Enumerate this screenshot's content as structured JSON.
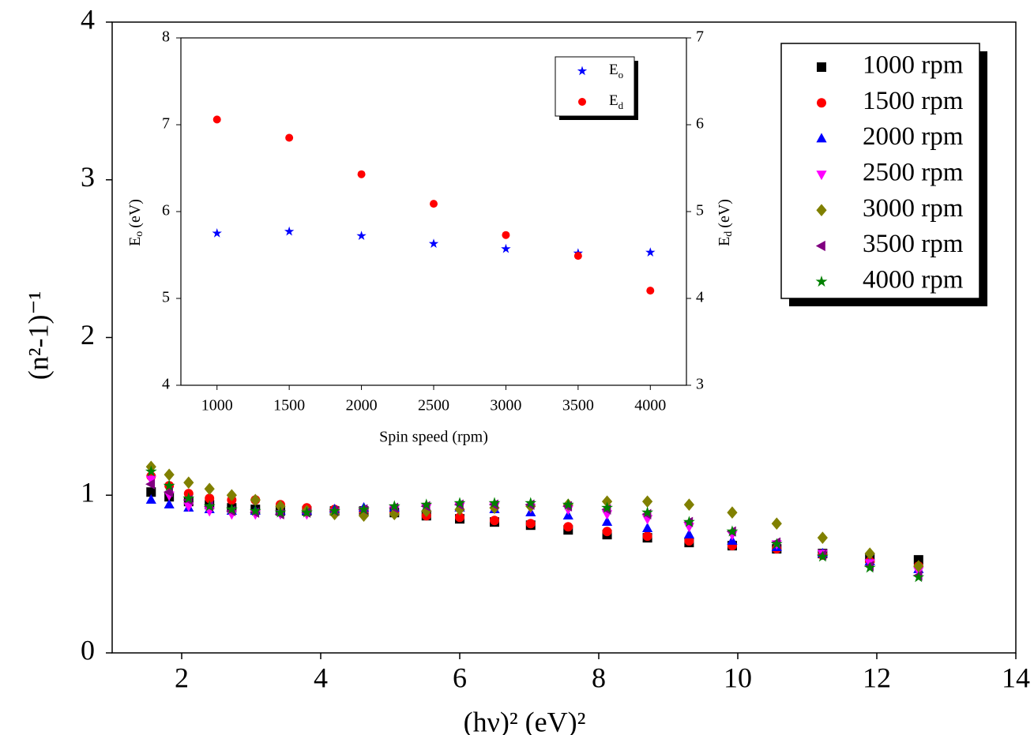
{
  "chart_data": [
    {
      "type": "scatter",
      "xlabel": "(hν)² (eV)²",
      "ylabel": "(n²-1)⁻¹",
      "xlim": [
        1,
        14
      ],
      "ylim": [
        0,
        4
      ],
      "xticks": [
        2,
        4,
        6,
        8,
        10,
        12,
        14
      ],
      "yticks": [
        0,
        1,
        2,
        3,
        4
      ],
      "legend": "upper right",
      "x": [
        1.56,
        1.82,
        2.1,
        2.4,
        2.72,
        3.06,
        3.42,
        3.8,
        4.2,
        4.62,
        5.06,
        5.52,
        6.0,
        6.5,
        7.02,
        7.56,
        8.12,
        8.7,
        9.3,
        9.92,
        10.56,
        11.22,
        11.9,
        12.6
      ],
      "series": [
        {
          "name": "1000 rpm",
          "color": "#000000",
          "marker": "square",
          "values": [
            1.02,
            0.99,
            0.96,
            0.94,
            0.92,
            0.91,
            0.9,
            0.9,
            0.9,
            0.9,
            0.89,
            0.87,
            0.85,
            0.83,
            0.81,
            0.78,
            0.75,
            0.73,
            0.7,
            0.68,
            0.66,
            0.63,
            0.6,
            0.59
          ]
        },
        {
          "name": "1500 rpm",
          "color": "#ff0000",
          "marker": "circle",
          "values": [
            1.12,
            1.06,
            1.01,
            0.98,
            0.97,
            0.97,
            0.94,
            0.92,
            0.91,
            0.9,
            0.89,
            0.87,
            0.86,
            0.84,
            0.82,
            0.8,
            0.77,
            0.74,
            0.71,
            0.68,
            0.66,
            0.62,
            0.58,
            0.55
          ]
        },
        {
          "name": "2000 rpm",
          "color": "#0000ff",
          "marker": "triangle-up",
          "values": [
            0.97,
            0.94,
            0.92,
            0.91,
            0.9,
            0.9,
            0.9,
            0.9,
            0.91,
            0.92,
            0.92,
            0.92,
            0.92,
            0.91,
            0.89,
            0.87,
            0.83,
            0.79,
            0.75,
            0.71,
            0.67,
            0.63,
            0.58,
            0.53
          ]
        },
        {
          "name": "2500 rpm",
          "color": "#ff00ff",
          "marker": "triangle-down",
          "values": [
            1.1,
            1.0,
            0.93,
            0.9,
            0.88,
            0.88,
            0.88,
            0.88,
            0.89,
            0.9,
            0.91,
            0.92,
            0.93,
            0.93,
            0.92,
            0.91,
            0.88,
            0.85,
            0.8,
            0.75,
            0.69,
            0.63,
            0.57,
            0.52
          ]
        },
        {
          "name": "3000 rpm",
          "color": "#808000",
          "marker": "diamond",
          "values": [
            1.18,
            1.13,
            1.08,
            1.04,
            1.0,
            0.97,
            0.93,
            0.9,
            0.88,
            0.87,
            0.88,
            0.9,
            0.91,
            0.92,
            0.93,
            0.94,
            0.96,
            0.96,
            0.94,
            0.89,
            0.82,
            0.73,
            0.63,
            0.55
          ]
        },
        {
          "name": "3500 rpm",
          "color": "#800080",
          "marker": "triangle-left",
          "values": [
            1.07,
            1.02,
            0.97,
            0.93,
            0.9,
            0.89,
            0.88,
            0.89,
            0.9,
            0.91,
            0.92,
            0.93,
            0.94,
            0.94,
            0.94,
            0.93,
            0.91,
            0.88,
            0.83,
            0.77,
            0.7,
            0.62,
            0.55,
            0.49
          ]
        },
        {
          "name": "4000 rpm",
          "color": "#008000",
          "marker": "star",
          "values": [
            1.15,
            1.06,
            0.98,
            0.93,
            0.91,
            0.9,
            0.89,
            0.89,
            0.9,
            0.91,
            0.93,
            0.94,
            0.95,
            0.95,
            0.95,
            0.94,
            0.92,
            0.89,
            0.83,
            0.77,
            0.69,
            0.61,
            0.54,
            0.48
          ]
        }
      ]
    },
    {
      "type": "scatter",
      "xlabel": "Spin speed (rpm)",
      "ylabel": {
        "main": "E",
        "sub": "o",
        "unit": "(eV)"
      },
      "y2label": {
        "main": "E",
        "sub": "d",
        "unit": "(eV)"
      },
      "xlim": [
        750,
        4250
      ],
      "ylim": [
        4,
        8
      ],
      "y2lim": [
        3,
        7
      ],
      "xticks": [
        1000,
        1500,
        2000,
        2500,
        3000,
        3500,
        4000
      ],
      "yticks": [
        4,
        5,
        6,
        7,
        8
      ],
      "y2ticks": [
        3,
        4,
        5,
        6,
        7
      ],
      "legend": "upper right",
      "x": [
        1000,
        1500,
        2000,
        2500,
        3000,
        3500,
        4000
      ],
      "series": [
        {
          "name": "E",
          "sub": "o",
          "color": "#0000ff",
          "marker": "star",
          "axis": "y",
          "values": [
            5.75,
            5.77,
            5.72,
            5.63,
            5.57,
            5.52,
            5.53
          ]
        },
        {
          "name": "E",
          "sub": "d",
          "color": "#ff0000",
          "marker": "circle",
          "axis": "y2",
          "values": [
            6.06,
            5.85,
            5.43,
            5.09,
            4.73,
            4.49,
            4.09
          ]
        }
      ]
    }
  ]
}
